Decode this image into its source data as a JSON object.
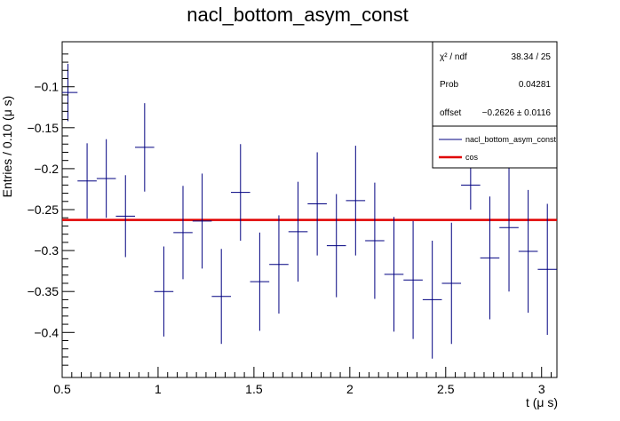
{
  "chart_data": {
    "type": "scatter",
    "title": "nacl_bottom_asym_const",
    "xlabel": "t (μ s)",
    "ylabel": "Entries / 0.10 (μ s)",
    "xlim": [
      0.5,
      3.08
    ],
    "ylim": [
      -0.455,
      -0.045
    ],
    "x_ticks": [
      0.5,
      1,
      1.5,
      2,
      2.5,
      3
    ],
    "x_tick_labels": [
      "0.5",
      "1",
      "1.5",
      "2",
      "2.5",
      "3"
    ],
    "y_ticks": [
      -0.1,
      -0.15,
      -0.2,
      -0.25,
      -0.3,
      -0.35,
      -0.4
    ],
    "y_tick_labels": [
      "−0.1",
      "−0.15",
      "−0.2",
      "−0.25",
      "−0.3",
      "−0.35",
      "−0.4"
    ],
    "grid": false,
    "bin_width": 0.1,
    "series": [
      {
        "name": "nacl_bottom_asym_const",
        "color": "#000080",
        "points": [
          {
            "x": 0.53,
            "y": -0.107,
            "err": 0.035
          },
          {
            "x": 0.63,
            "y": -0.215,
            "err": 0.046
          },
          {
            "x": 0.73,
            "y": -0.212,
            "err": 0.048
          },
          {
            "x": 0.83,
            "y": -0.258,
            "err": 0.05
          },
          {
            "x": 0.93,
            "y": -0.174,
            "err": 0.054
          },
          {
            "x": 1.03,
            "y": -0.35,
            "err": 0.055
          },
          {
            "x": 1.13,
            "y": -0.278,
            "err": 0.057
          },
          {
            "x": 1.23,
            "y": -0.264,
            "err": 0.058
          },
          {
            "x": 1.33,
            "y": -0.356,
            "err": 0.058
          },
          {
            "x": 1.43,
            "y": -0.229,
            "err": 0.059
          },
          {
            "x": 1.53,
            "y": -0.338,
            "err": 0.06
          },
          {
            "x": 1.63,
            "y": -0.317,
            "err": 0.06
          },
          {
            "x": 1.73,
            "y": -0.277,
            "err": 0.061
          },
          {
            "x": 1.83,
            "y": -0.243,
            "err": 0.063
          },
          {
            "x": 1.93,
            "y": -0.294,
            "err": 0.063
          },
          {
            "x": 2.03,
            "y": -0.239,
            "err": 0.067
          },
          {
            "x": 2.13,
            "y": -0.288,
            "err": 0.071
          },
          {
            "x": 2.23,
            "y": -0.329,
            "err": 0.07
          },
          {
            "x": 2.33,
            "y": -0.336,
            "err": 0.072
          },
          {
            "x": 2.43,
            "y": -0.36,
            "err": 0.072
          },
          {
            "x": 2.53,
            "y": -0.34,
            "err": 0.074
          },
          {
            "x": 2.63,
            "y": -0.22,
            "err": 0.03
          },
          {
            "x": 2.73,
            "y": -0.309,
            "err": 0.075
          },
          {
            "x": 2.83,
            "y": -0.272,
            "err": 0.078
          },
          {
            "x": 2.93,
            "y": -0.301,
            "err": 0.075
          },
          {
            "x": 3.03,
            "y": -0.323,
            "err": 0.08
          }
        ]
      },
      {
        "name": "cos",
        "type": "line",
        "color": "#e00000",
        "value": -0.2626
      }
    ],
    "stats": [
      {
        "label": "χ² / ndf",
        "value": "38.34 / 25"
      },
      {
        "label": "Prob",
        "value": "0.04281"
      },
      {
        "label": "offset",
        "value": "−0.2626 ± 0.0116"
      }
    ],
    "legend_position": "top-right"
  }
}
